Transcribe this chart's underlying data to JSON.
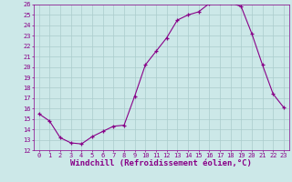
{
  "x": [
    0,
    1,
    2,
    3,
    4,
    5,
    6,
    7,
    8,
    9,
    10,
    11,
    12,
    13,
    14,
    15,
    16,
    17,
    18,
    19,
    20,
    21,
    22,
    23
  ],
  "y": [
    15.5,
    14.8,
    13.2,
    12.7,
    12.6,
    13.3,
    13.8,
    14.3,
    14.4,
    17.2,
    20.2,
    21.5,
    22.8,
    24.5,
    25.0,
    25.3,
    26.1,
    26.2,
    26.2,
    25.8,
    23.2,
    20.2,
    17.4,
    16.1
  ],
  "line_color": "#880088",
  "marker": "+",
  "marker_size": 3,
  "background_color": "#cce8e8",
  "grid_color": "#aacccc",
  "xlabel": "Windchill (Refroidissement éolien,°C)",
  "xlabel_color": "#880088",
  "tick_color": "#880088",
  "ylim": [
    12,
    26
  ],
  "xlim_min": -0.5,
  "xlim_max": 23.5,
  "yticks": [
    12,
    13,
    14,
    15,
    16,
    17,
    18,
    19,
    20,
    21,
    22,
    23,
    24,
    25,
    26
  ],
  "xticks": [
    0,
    1,
    2,
    3,
    4,
    5,
    6,
    7,
    8,
    9,
    10,
    11,
    12,
    13,
    14,
    15,
    16,
    17,
    18,
    19,
    20,
    21,
    22,
    23
  ],
  "tick_fontsize": 5.0,
  "xlabel_fontsize": 6.5
}
